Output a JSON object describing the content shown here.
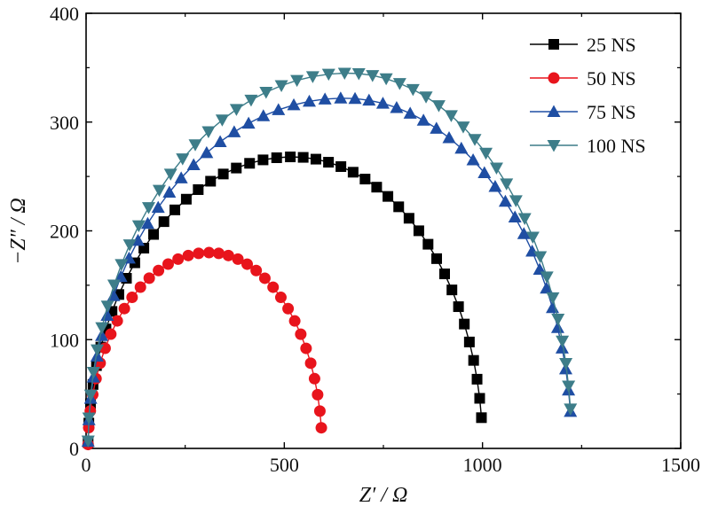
{
  "chart_data": {
    "type": "scatter",
    "title": "",
    "xlabel": "Z′ / Ω",
    "ylabel": "−Z″ / Ω",
    "xlim": [
      0,
      1500
    ],
    "ylim": [
      0,
      400
    ],
    "xticks": [
      "0",
      "500",
      "1000",
      "1500"
    ],
    "yticks": [
      "0",
      "100",
      "200",
      "300",
      "400"
    ],
    "grid": false,
    "legend_position": "top-right",
    "series": [
      {
        "name": "25 NS",
        "color": "#000000",
        "marker": "square",
        "arc": {
          "start": 5,
          "end": 1000,
          "peak_x": 520,
          "peak_y": 268,
          "n": 46
        }
      },
      {
        "name": "50 NS",
        "color": "#e8141c",
        "marker": "circle",
        "arc": {
          "start": 5,
          "end": 595,
          "peak_x": 310,
          "peak_y": 180,
          "n": 36
        }
      },
      {
        "name": "75 NS",
        "color": "#1f4ea3",
        "marker": "triangle-up",
        "arc": {
          "start": 5,
          "end": 1225,
          "peak_x": 650,
          "peak_y": 322,
          "n": 50
        }
      },
      {
        "name": "100 NS",
        "color": "#3d7d89",
        "marker": "triangle-down",
        "arc": {
          "start": 5,
          "end": 1225,
          "peak_x": 660,
          "peak_y": 345,
          "n": 50
        }
      }
    ]
  }
}
